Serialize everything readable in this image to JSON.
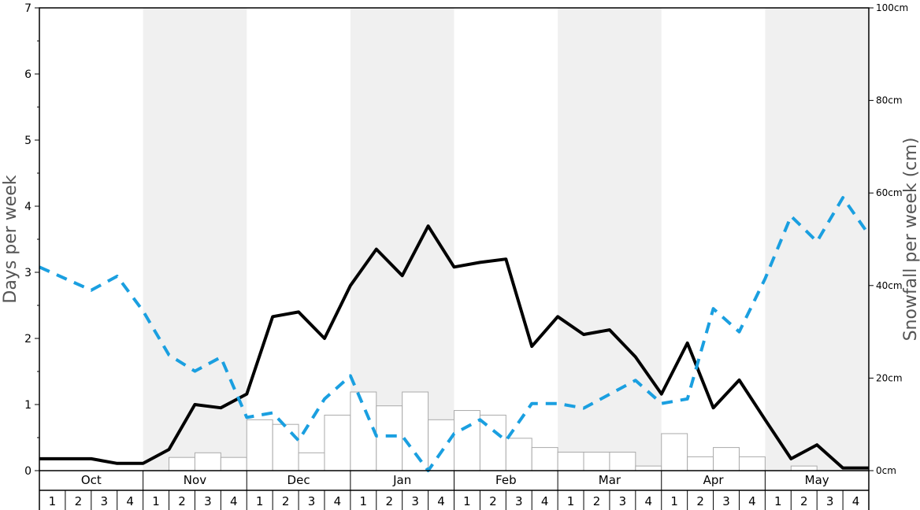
{
  "chart_data": {
    "type": "bar+line",
    "months": [
      "Oct",
      "Nov",
      "Dec",
      "Jan",
      "Feb",
      "Mar",
      "Apr",
      "May"
    ],
    "week_labels": [
      "1",
      "2",
      "3",
      "4"
    ],
    "left_axis": {
      "label": "Days per week",
      "range": [
        0,
        7
      ],
      "ticks": [
        "0",
        "1",
        "2",
        "3",
        "4",
        "5",
        "6",
        "7"
      ]
    },
    "right_axis": {
      "label": "Snowfall per week (cm)",
      "range": [
        0,
        100
      ],
      "ticks": [
        "0cm",
        "20cm",
        "40cm",
        "60cm",
        "80cm",
        "100cm"
      ]
    },
    "series": [
      {
        "type": "bar",
        "axis": "left",
        "values": [
          0,
          0,
          0,
          0,
          0,
          0.2,
          0.27,
          0.2,
          0.77,
          0.7,
          0.27,
          0.84,
          1.19,
          0.98,
          1.19,
          0.77,
          0.91,
          0.84,
          0.49,
          0.35,
          0.28,
          0.28,
          0.28,
          0.07,
          0.56,
          0.21,
          0.35,
          0.21,
          0,
          0.07,
          0,
          0
        ]
      },
      {
        "type": "line",
        "axis": "left",
        "values": [
          0.18,
          0.18,
          0.18,
          0.11,
          0.11,
          0.32,
          1.0,
          0.95,
          1.16,
          2.33,
          2.4,
          2.0,
          2.8,
          3.35,
          2.95,
          3.7,
          3.08,
          3.15,
          3.2,
          1.88,
          2.33,
          2.06,
          2.13,
          1.72,
          1.16,
          1.93,
          0.95,
          1.37,
          0.77,
          0.18,
          0.39,
          0.04,
          0.04
        ]
      },
      {
        "type": "line",
        "axis": "right",
        "style": "dashed",
        "values": [
          44,
          41.5,
          39,
          42,
          34.5,
          25,
          21.5,
          24.5,
          11.5,
          12.5,
          6.5,
          15.5,
          20.5,
          7.5,
          7.5,
          0,
          8,
          11,
          6.5,
          14.5,
          14.5,
          13.5,
          16.5,
          19.5,
          14.5,
          15.5,
          35,
          30,
          41.5,
          55,
          49.5,
          59,
          51
        ]
      }
    ],
    "colors": {
      "band": "#f0f0f0",
      "bar_fill": "#ffffff",
      "bar_stroke": "#aaaaaa",
      "solid_line": "#000000",
      "dashed_line": "#1a9fe0"
    }
  }
}
